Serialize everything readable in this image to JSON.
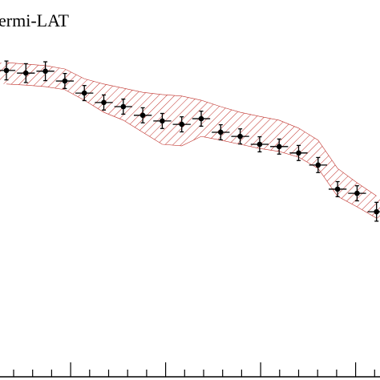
{
  "chart_data": {
    "type": "errorbar",
    "title": "ermi-LAT",
    "categories": [
      null,
      null,
      null,
      null,
      null,
      null,
      null,
      null,
      null,
      null,
      null,
      null,
      null,
      null,
      null,
      null,
      null,
      null,
      null,
      null
    ],
    "values": [
      81.3,
      80.6,
      81.1,
      78.5,
      75.3,
      72.8,
      71.7,
      69.4,
      67.9,
      67.0,
      68.5,
      64.9,
      63.8,
      61.7,
      61.1,
      59.4,
      56.2,
      49.8,
      48.7,
      43.8
    ],
    "errors": [
      2.5,
      2.5,
      2.5,
      2.0,
      2.0,
      2.0,
      2.0,
      2.0,
      2.0,
      2.0,
      2.0,
      2.0,
      2.0,
      2.0,
      2.0,
      2.0,
      2.0,
      2.0,
      2.0,
      2.5
    ],
    "band_upper": [
      83.4,
      83.0,
      82.6,
      81.7,
      79.1,
      77.7,
      76.6,
      75.5,
      74.9,
      74.5,
      73.4,
      71.7,
      70.2,
      69.1,
      68.1,
      66.0,
      62.8,
      55.3,
      51.5,
      48.0
    ],
    "band_lower": [
      77.7,
      77.4,
      77.0,
      76.2,
      73.4,
      70.2,
      68.1,
      64.9,
      61.7,
      61.3,
      63.8,
      62.8,
      61.7,
      60.6,
      59.8,
      58.3,
      55.3,
      47.9,
      45.1,
      42.1
    ],
    "color": "#000000",
    "band_color": "#c0302a",
    "ylim": [
      0,
      100
    ]
  }
}
